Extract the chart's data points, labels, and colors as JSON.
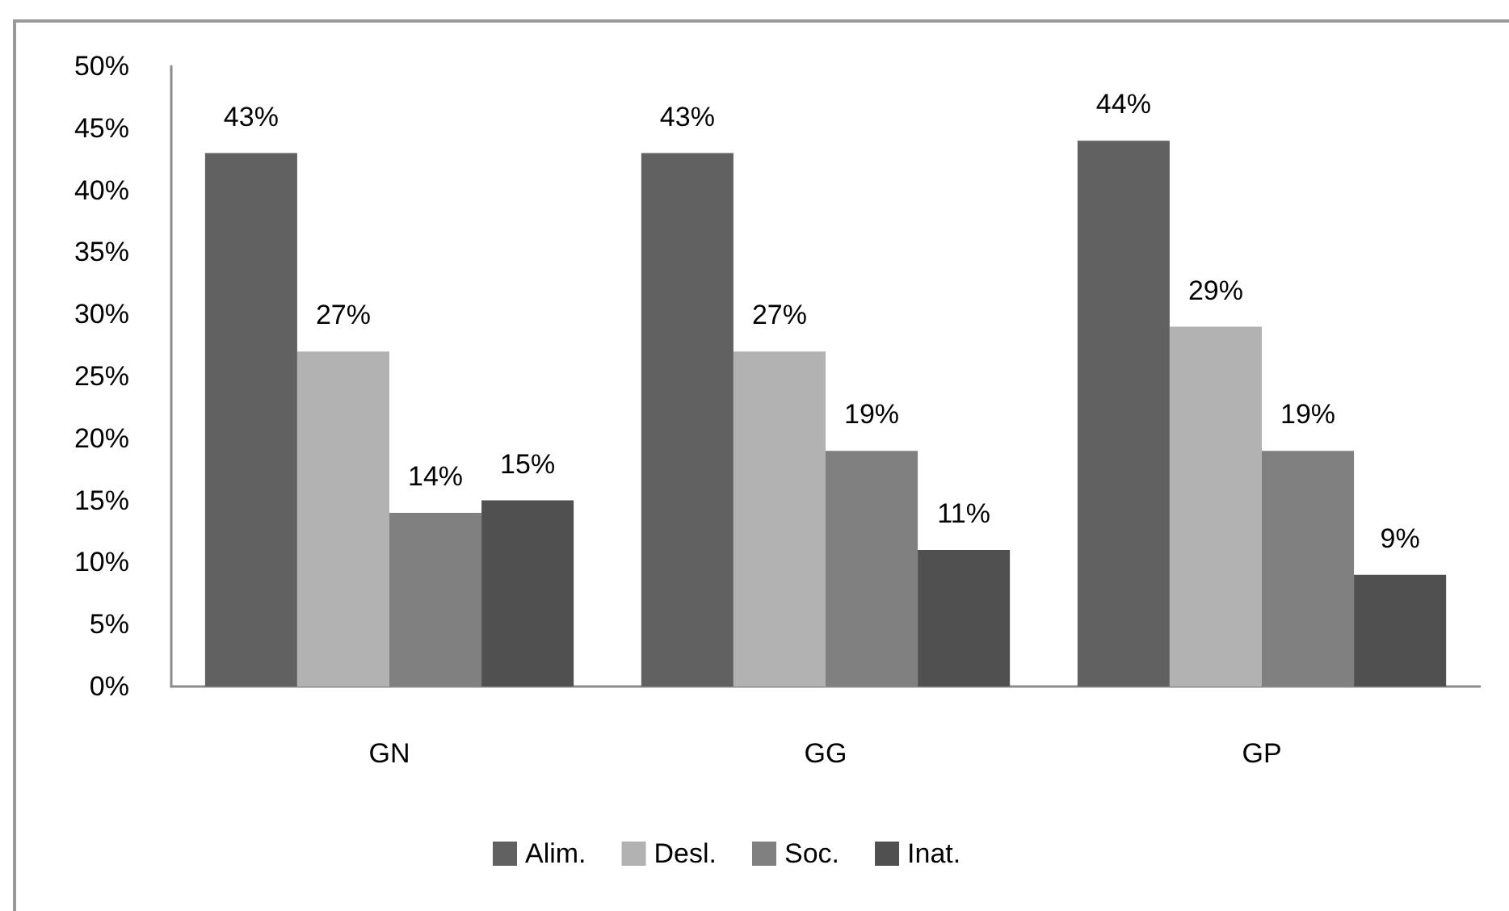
{
  "chart_data": {
    "type": "bar",
    "categories": [
      "GN",
      "GG",
      "GP"
    ],
    "series": [
      {
        "name": "Alim.",
        "color": "#616161",
        "values": [
          43,
          43,
          44
        ],
        "value_labels": [
          "43%",
          "43%",
          "44%"
        ]
      },
      {
        "name": "Desl.",
        "color": "#b2b2b2",
        "values": [
          27,
          27,
          29
        ],
        "value_labels": [
          "27%",
          "27%",
          "29%"
        ]
      },
      {
        "name": "Soc.",
        "color": "#808080",
        "values": [
          14,
          19,
          19
        ],
        "value_labels": [
          "14%",
          "19%",
          "19%"
        ]
      },
      {
        "name": "Inat.",
        "color": "#505050",
        "values": [
          15,
          11,
          9
        ],
        "value_labels": [
          "15%",
          "11%",
          "9%"
        ]
      }
    ],
    "ylim": [
      0,
      50
    ],
    "yticks": [
      {
        "value": 0,
        "label": "0%"
      },
      {
        "value": 5,
        "label": "5%"
      },
      {
        "value": 10,
        "label": "10%"
      },
      {
        "value": 15,
        "label": "15%"
      },
      {
        "value": 20,
        "label": "20%"
      },
      {
        "value": 25,
        "label": "25%"
      },
      {
        "value": 30,
        "label": "30%"
      },
      {
        "value": 35,
        "label": "35%"
      },
      {
        "value": 40,
        "label": "40%"
      },
      {
        "value": 45,
        "label": "45%"
      },
      {
        "value": 50,
        "label": "50%"
      }
    ],
    "grid": false,
    "legend": "bottom"
  }
}
